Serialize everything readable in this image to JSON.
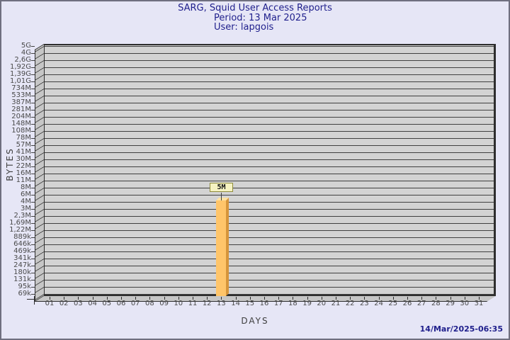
{
  "page": {
    "background": "#E6E6F6",
    "border_color": "#6F6F7F"
  },
  "header": {
    "title": "SARG, Squid User Access Reports",
    "period": "Period: 13 Mar 2025",
    "user": "User: lapgois",
    "text_color": "#1F1F8C"
  },
  "footer": {
    "timestamp": "14/Mar/2025-06:35"
  },
  "chart_data": {
    "type": "bar",
    "title": "SARG, Squid User Access Reports",
    "subtitle_lines": [
      "Period: 13 Mar 2025",
      "User: lapgois"
    ],
    "xlabel": "DAYS",
    "ylabel": "BYTES",
    "y_axis_scale": "logarithmic-style SARG byte ticks, top to bottom",
    "y_tick_labels": [
      "5G",
      "4G",
      "2,6G",
      "1,92G",
      "1,39G",
      "1,01G",
      "734M",
      "533M",
      "387M",
      "281M",
      "204M",
      "148M",
      "108M",
      "78M",
      "57M",
      "41M",
      "30M",
      "22M",
      "16M",
      "11M",
      "8M",
      "6M",
      "4M",
      "3M",
      "2,3M",
      "1,69M",
      "1,22M",
      "889k",
      "646k",
      "469k",
      "341k",
      "247k",
      "180k",
      "131k",
      "95k",
      "69k"
    ],
    "x_categories": [
      "01",
      "02",
      "03",
      "04",
      "05",
      "06",
      "07",
      "08",
      "09",
      "10",
      "11",
      "12",
      "13",
      "14",
      "15",
      "16",
      "17",
      "18",
      "19",
      "20",
      "21",
      "22",
      "23",
      "24",
      "25",
      "26",
      "27",
      "28",
      "29",
      "30",
      "31"
    ],
    "values": [
      0,
      0,
      0,
      0,
      0,
      0,
      0,
      0,
      0,
      0,
      0,
      0,
      5000000,
      0,
      0,
      0,
      0,
      0,
      0,
      0,
      0,
      0,
      0,
      0,
      0,
      0,
      0,
      0,
      0,
      0,
      0
    ],
    "bars": [
      {
        "day": "13",
        "value_label": "5M",
        "value_bytes": 5000000
      }
    ],
    "grid": "horizontal dark lines every tick",
    "legend_position": "none",
    "colors": {
      "plot_face": "#D3D3D3",
      "plot_wall": "#C6C6C6",
      "gridline": "#404040",
      "bar_front": "#FFC56A",
      "bar_side": "#D6953B",
      "bar_top": "#FFE2A1",
      "annotation_box_bg": "#F6F3C2",
      "annotation_box_border": "#8F8C3B"
    }
  }
}
